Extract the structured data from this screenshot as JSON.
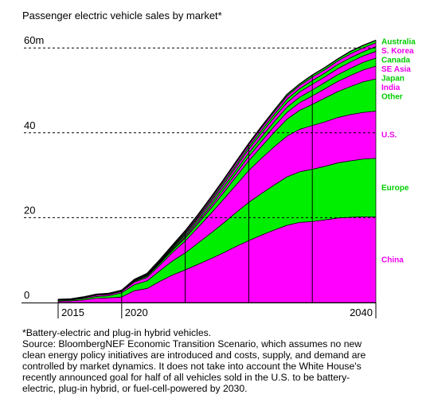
{
  "title": "Passenger electric vehicle sales by market*",
  "chart_data": {
    "type": "area",
    "stacked": true,
    "title": "Passenger electric vehicle sales by market*",
    "x": [
      2015,
      2016,
      2017,
      2018,
      2019,
      2020,
      2021,
      2022,
      2023,
      2024,
      2025,
      2026,
      2027,
      2028,
      2029,
      2030,
      2031,
      2032,
      2033,
      2034,
      2035,
      2036,
      2037,
      2038,
      2039,
      2040
    ],
    "x_ticks": [
      "2015",
      "2020",
      "2040"
    ],
    "y_ticks": [
      "0",
      "20",
      "40",
      "60m"
    ],
    "ylim": [
      0,
      66
    ],
    "grid": "dotted",
    "legend_placement": "right",
    "series": [
      {
        "name": "China",
        "color": "#ff00ff",
        "values": [
          0.3,
          0.4,
          0.6,
          1.0,
          1.1,
          1.3,
          2.8,
          3.3,
          5.0,
          6.5,
          7.7,
          9.0,
          10.3,
          11.7,
          13.2,
          14.6,
          15.9,
          17.1,
          18.2,
          18.9,
          19.1,
          19.5,
          19.9,
          20.1,
          20.2,
          20.2
        ]
      },
      {
        "name": "Europe",
        "color": "#00ee00",
        "values": [
          0.2,
          0.2,
          0.3,
          0.4,
          0.5,
          1.0,
          1.4,
          1.8,
          2.5,
          3.3,
          4.0,
          5.0,
          6.0,
          7.0,
          8.0,
          9.0,
          9.8,
          10.6,
          11.4,
          11.9,
          12.3,
          12.6,
          13.0,
          13.3,
          13.6,
          13.8
        ]
      },
      {
        "name": "U.S.",
        "color": "#ff00ff",
        "values": [
          0.1,
          0.1,
          0.2,
          0.3,
          0.3,
          0.3,
          0.6,
          0.8,
          1.3,
          2.0,
          2.8,
          3.7,
          4.6,
          5.6,
          6.5,
          7.5,
          8.3,
          9.0,
          9.6,
          10.0,
          10.3,
          10.5,
          10.7,
          10.9,
          11.0,
          11.1
        ]
      },
      {
        "name": "Other",
        "color": "#00ee00",
        "values": [
          0.05,
          0.05,
          0.1,
          0.1,
          0.1,
          0.1,
          0.2,
          0.3,
          0.4,
          0.5,
          0.7,
          0.9,
          1.2,
          1.5,
          1.9,
          2.3,
          2.8,
          3.4,
          4.0,
          4.5,
          5.0,
          5.6,
          6.1,
          6.6,
          7.2,
          7.6
        ]
      },
      {
        "name": "India",
        "color": "#ff00ff",
        "values": [
          0.01,
          0.01,
          0.01,
          0.01,
          0.01,
          0.02,
          0.05,
          0.1,
          0.1,
          0.2,
          0.3,
          0.4,
          0.5,
          0.7,
          0.8,
          1.0,
          1.2,
          1.4,
          1.6,
          1.8,
          2.0,
          2.2,
          2.4,
          2.6,
          2.8,
          3.0
        ]
      },
      {
        "name": "Japan",
        "color": "#00ee00",
        "values": [
          0.03,
          0.03,
          0.04,
          0.05,
          0.05,
          0.05,
          0.1,
          0.2,
          0.2,
          0.3,
          0.4,
          0.5,
          0.6,
          0.7,
          0.8,
          0.9,
          1.0,
          1.1,
          1.2,
          1.3,
          1.4,
          1.5,
          1.6,
          1.7,
          1.8,
          1.9
        ]
      },
      {
        "name": "SE Asia",
        "color": "#ff00ff",
        "values": [
          0.01,
          0.01,
          0.01,
          0.01,
          0.01,
          0.02,
          0.05,
          0.1,
          0.1,
          0.2,
          0.3,
          0.4,
          0.5,
          0.6,
          0.7,
          0.8,
          0.9,
          1.0,
          1.1,
          1.2,
          1.3,
          1.3,
          1.4,
          1.5,
          1.5,
          1.6
        ]
      },
      {
        "name": "Canada",
        "color": "#00ee00",
        "values": [
          0.02,
          0.02,
          0.03,
          0.04,
          0.05,
          0.05,
          0.1,
          0.1,
          0.2,
          0.2,
          0.3,
          0.3,
          0.4,
          0.5,
          0.5,
          0.6,
          0.7,
          0.7,
          0.8,
          0.8,
          0.9,
          0.9,
          1.0,
          1.0,
          1.0,
          1.1
        ]
      },
      {
        "name": "S. Korea",
        "color": "#ff00ff",
        "values": [
          0.01,
          0.01,
          0.02,
          0.03,
          0.04,
          0.05,
          0.1,
          0.1,
          0.2,
          0.2,
          0.3,
          0.3,
          0.4,
          0.4,
          0.5,
          0.5,
          0.6,
          0.6,
          0.7,
          0.7,
          0.8,
          0.8,
          0.8,
          0.9,
          0.9,
          0.9
        ]
      },
      {
        "name": "Australia",
        "color": "#00ee00",
        "values": [
          0.01,
          0.01,
          0.01,
          0.01,
          0.01,
          0.02,
          0.04,
          0.05,
          0.1,
          0.1,
          0.1,
          0.2,
          0.2,
          0.2,
          0.3,
          0.3,
          0.3,
          0.4,
          0.4,
          0.4,
          0.5,
          0.5,
          0.5,
          0.6,
          0.6,
          0.6
        ]
      }
    ]
  },
  "notes": [
    "*Battery-electric and plug-in hybrid vehicles.",
    "Source: BloombergNEF Economic Transition Scenario, which assumes no new",
    "clean energy policy initiatives are introduced and costs, supply, and demand are",
    "controlled by market dynamics. It does not take into account the White House's",
    "recently announced goal for half of all vehicles sold in the U.S. to be battery-",
    "electric, plug-in hybrid, or fuel-cell-powered by 2030."
  ]
}
